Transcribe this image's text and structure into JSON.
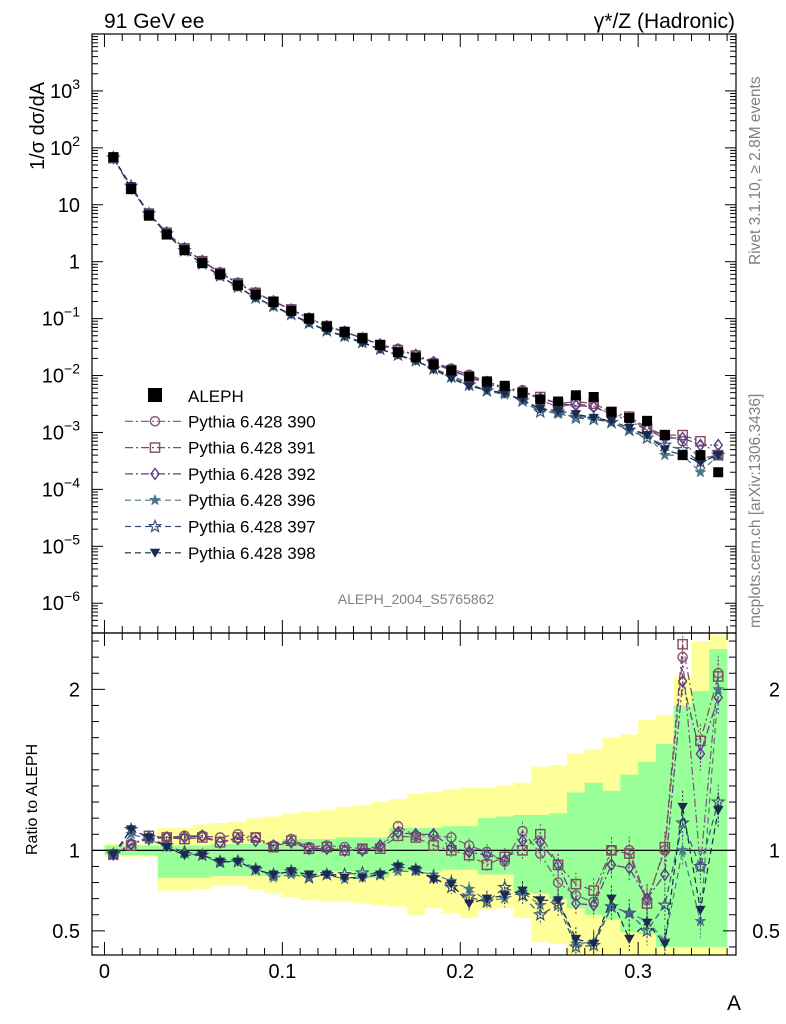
{
  "header": {
    "left": "91 GeV ee",
    "right": "γ*/Z (Hadronic)"
  },
  "side": {
    "top": "Rivet 3.1.10, ≥ 2.8M events",
    "bottom": "mcplots.cern.ch [arXiv:1306.3436]"
  },
  "watermark": "ALEPH_2004_S5765862",
  "colors": {
    "data": "#000000",
    "band_stat": "#99ff99",
    "band_syst": "#ffff99",
    "s390": "#80557f",
    "s391": "#7f4d5b",
    "s392": "#5b3d86",
    "s396": "#4b7889",
    "s397": "#3a5578",
    "s398": "#1b2a4e"
  },
  "chart_data": [
    {
      "type": "scatter",
      "panel": "main",
      "ylabel": "1/σ  dσ/dA",
      "xlabel": "",
      "xlim": [
        -0.007,
        0.355
      ],
      "ylim": [
        3e-07,
        10000
      ],
      "log_y": true,
      "y_ticks": [
        {
          "v": 1e-06,
          "base": "10",
          "exp": "−6"
        },
        {
          "v": 1e-05,
          "base": "10",
          "exp": "−5"
        },
        {
          "v": 0.0001,
          "base": "10",
          "exp": "−4"
        },
        {
          "v": 0.001,
          "base": "10",
          "exp": "−3"
        },
        {
          "v": 0.01,
          "base": "10",
          "exp": "−2"
        },
        {
          "v": 0.1,
          "base": "10",
          "exp": "−1"
        },
        {
          "v": 1,
          "base": "1",
          "exp": ""
        },
        {
          "v": 10,
          "base": "10",
          "exp": ""
        },
        {
          "v": 100,
          "base": "10",
          "exp": "2"
        },
        {
          "v": 1000,
          "base": "10",
          "exp": "3"
        }
      ],
      "legend_position": "middle-left",
      "x": [
        0.005,
        0.015,
        0.025,
        0.035,
        0.045,
        0.055,
        0.065,
        0.075,
        0.085,
        0.095,
        0.105,
        0.115,
        0.125,
        0.135,
        0.145,
        0.155,
        0.165,
        0.175,
        0.185,
        0.195,
        0.205,
        0.215,
        0.225,
        0.235,
        0.245,
        0.255,
        0.265,
        0.275,
        0.285,
        0.295,
        0.305,
        0.315,
        0.325,
        0.335,
        0.345
      ],
      "data": {
        "name": "ALEPH",
        "values": [
          68.7,
          18.8,
          6.43,
          3.0,
          1.59,
          0.946,
          0.602,
          0.385,
          0.264,
          0.196,
          0.137,
          0.1,
          0.0726,
          0.0585,
          0.045,
          0.0343,
          0.0257,
          0.0208,
          0.0157,
          0.0123,
          0.00961,
          0.0079,
          0.0066,
          0.005,
          0.0038,
          0.0035,
          0.0045,
          0.0042,
          0.0023,
          0.0018,
          0.0016,
          0.0009,
          0.0004,
          0.0004,
          0.0002
        ]
      },
      "series": [
        {
          "name": "Pythia 6.428 390",
          "color_key": "s390",
          "marker": "circle-open",
          "dash": "8 3 2 3",
          "values": [
            66.9,
            19.5,
            6.97,
            3.24,
            1.73,
            1.03,
            0.648,
            0.425,
            0.285,
            0.201,
            0.146,
            0.102,
            0.0744,
            0.0595,
            0.0454,
            0.0348,
            0.0295,
            0.0227,
            0.0171,
            0.0133,
            0.0103,
            0.0078,
            0.0061,
            0.0055,
            0.0037,
            0.0028,
            0.0032,
            0.0029,
            0.0021,
            0.0018,
            0.0011,
            0.0009,
            0.0007,
            0.00035,
            0.0004
          ]
        },
        {
          "name": "Pythia 6.428 391",
          "color_key": "s391",
          "marker": "square-open",
          "dash": "8 3 2 3",
          "values": [
            66.3,
            19.4,
            7.0,
            3.23,
            1.71,
            1.02,
            0.63,
            0.414,
            0.284,
            0.2,
            0.145,
            0.101,
            0.0738,
            0.058,
            0.0455,
            0.0345,
            0.0279,
            0.0225,
            0.0161,
            0.0123,
            0.0093,
            0.0072,
            0.0059,
            0.005,
            0.0042,
            0.0032,
            0.0035,
            0.0032,
            0.0023,
            0.0019,
            0.0012,
            0.0009,
            0.0009,
            0.0007,
            0.0004
          ]
        },
        {
          "name": "Pythia 6.428 392",
          "color_key": "s392",
          "marker": "diamond-open",
          "dash": "8 3 2 3",
          "values": [
            66.5,
            19.6,
            6.9,
            3.25,
            1.72,
            1.03,
            0.63,
            0.412,
            0.281,
            0.201,
            0.144,
            0.101,
            0.0732,
            0.0584,
            0.045,
            0.0352,
            0.0285,
            0.023,
            0.0172,
            0.0125,
            0.0095,
            0.0077,
            0.0062,
            0.0053,
            0.004,
            0.0032,
            0.003,
            0.0028,
            0.0021,
            0.0016,
            0.0011,
            0.0008,
            0.0008,
            0.0006,
            0.0006
          ]
        },
        {
          "name": "Pythia 6.428 396",
          "color_key": "s396",
          "marker": "star-filled",
          "dash": "6 4",
          "values": [
            67.2,
            20.6,
            6.9,
            3.06,
            1.56,
            0.918,
            0.556,
            0.362,
            0.235,
            0.162,
            0.117,
            0.083,
            0.0615,
            0.048,
            0.0374,
            0.029,
            0.0224,
            0.018,
            0.0133,
            0.01,
            0.0073,
            0.0054,
            0.0046,
            0.0037,
            0.0025,
            0.0021,
            0.0019,
            0.0018,
            0.0015,
            0.0011,
            0.0009,
            0.0004,
            0.0004,
            0.0002,
            0.0004
          ]
        },
        {
          "name": "Pythia 6.428 397",
          "color_key": "s397",
          "marker": "star-open",
          "dash": "6 4",
          "values": [
            66.8,
            21.2,
            6.95,
            3.1,
            1.57,
            0.92,
            0.561,
            0.36,
            0.232,
            0.167,
            0.119,
            0.0835,
            0.0614,
            0.0498,
            0.0385,
            0.0291,
            0.023,
            0.0183,
            0.0131,
            0.0095,
            0.0068,
            0.0054,
            0.0051,
            0.0036,
            0.0023,
            0.0023,
            0.0018,
            0.0017,
            0.0015,
            0.0011,
            0.0008,
            0.0006,
            0.0005,
            0.0003,
            0.0004
          ]
        },
        {
          "name": "Pythia 6.428 398",
          "color_key": "s398",
          "marker": "triangle-down-filled",
          "dash": "6 4",
          "values": [
            66.7,
            21.3,
            6.97,
            3.05,
            1.54,
            0.917,
            0.561,
            0.36,
            0.233,
            0.166,
            0.119,
            0.0855,
            0.0618,
            0.0487,
            0.0374,
            0.029,
            0.0232,
            0.0183,
            0.0128,
            0.0089,
            0.0065,
            0.0056,
            0.0048,
            0.0038,
            0.0026,
            0.0024,
            0.0021,
            0.0018,
            0.0016,
            0.0012,
            0.0009,
            0.0005,
            0.0004,
            0.0003,
            0.0004
          ]
        }
      ]
    },
    {
      "type": "scatter",
      "panel": "ratio",
      "ylabel": "Ratio to ALEPH",
      "xlabel": "A",
      "xlim": [
        -0.007,
        0.355
      ],
      "ylim": [
        0.35,
        2.35
      ],
      "x_ticks": [
        0,
        0.1,
        0.2,
        0.3
      ],
      "y_ticks": [
        0.5,
        1,
        2
      ],
      "x": [
        0.005,
        0.015,
        0.025,
        0.035,
        0.045,
        0.055,
        0.065,
        0.075,
        0.085,
        0.095,
        0.105,
        0.115,
        0.125,
        0.135,
        0.145,
        0.155,
        0.165,
        0.175,
        0.185,
        0.195,
        0.205,
        0.215,
        0.225,
        0.235,
        0.245,
        0.255,
        0.265,
        0.275,
        0.285,
        0.295,
        0.305,
        0.315,
        0.325,
        0.335,
        0.345
      ],
      "band_syst": [
        [
          0.96,
          1.04
        ],
        [
          0.96,
          1.04
        ],
        [
          0.96,
          1.04
        ],
        [
          0.75,
          1.14
        ],
        [
          0.75,
          1.14
        ],
        [
          0.76,
          1.16
        ],
        [
          0.78,
          1.17
        ],
        [
          0.78,
          1.18
        ],
        [
          0.76,
          1.2
        ],
        [
          0.73,
          1.21
        ],
        [
          0.71,
          1.23
        ],
        [
          0.69,
          1.24
        ],
        [
          0.68,
          1.25
        ],
        [
          0.68,
          1.27
        ],
        [
          0.67,
          1.28
        ],
        [
          0.66,
          1.3
        ],
        [
          0.65,
          1.32
        ],
        [
          0.6,
          1.35
        ],
        [
          0.64,
          1.36
        ],
        [
          0.61,
          1.38
        ],
        [
          0.58,
          1.39
        ],
        [
          0.63,
          1.39
        ],
        [
          0.64,
          1.4
        ],
        [
          0.58,
          1.42
        ],
        [
          0.43,
          1.52
        ],
        [
          0.42,
          1.53
        ],
        [
          0.35,
          1.6
        ],
        [
          0.35,
          1.63
        ],
        [
          0.35,
          1.7
        ],
        [
          0.35,
          1.72
        ],
        [
          0.35,
          1.81
        ],
        [
          0.35,
          1.84
        ],
        [
          0.35,
          2.08
        ],
        [
          0.35,
          2.3
        ],
        [
          0.35,
          2.34
        ]
      ],
      "band_stat": [
        [
          0.97,
          1.03
        ],
        [
          0.97,
          1.03
        ],
        [
          0.97,
          1.03
        ],
        [
          0.83,
          1.03
        ],
        [
          0.83,
          1.03
        ],
        [
          0.83,
          1.03
        ],
        [
          0.84,
          1.04
        ],
        [
          0.84,
          1.04
        ],
        [
          0.84,
          1.04
        ],
        [
          0.84,
          1.04
        ],
        [
          0.84,
          1.07
        ],
        [
          0.84,
          1.07
        ],
        [
          0.87,
          1.07
        ],
        [
          0.87,
          1.08
        ],
        [
          0.83,
          1.08
        ],
        [
          0.83,
          1.08
        ],
        [
          0.87,
          1.14
        ],
        [
          0.87,
          1.14
        ],
        [
          0.87,
          1.14
        ],
        [
          0.88,
          1.15
        ],
        [
          0.88,
          1.15
        ],
        [
          0.85,
          1.2
        ],
        [
          0.85,
          1.21
        ],
        [
          0.74,
          1.22
        ],
        [
          0.73,
          1.22
        ],
        [
          0.7,
          1.23
        ],
        [
          0.64,
          1.36
        ],
        [
          0.6,
          1.42
        ],
        [
          0.57,
          1.37
        ],
        [
          0.49,
          1.47
        ],
        [
          0.48,
          1.55
        ],
        [
          0.4,
          1.66
        ],
        [
          0.4,
          1.9
        ],
        [
          0.4,
          1.99
        ],
        [
          0.4,
          2.25
        ]
      ],
      "reference": 1,
      "series": [
        {
          "name": "Pythia 6.428 390",
          "color_key": "s390",
          "marker": "circle-open",
          "dash": "8 3 2 3",
          "values": [
            0.975,
            1.04,
            1.08,
            1.08,
            1.09,
            1.09,
            1.08,
            1.1,
            1.08,
            1.03,
            1.07,
            1.02,
            1.03,
            1.02,
            1.01,
            1.02,
            1.15,
            1.09,
            1.09,
            1.08,
            1.03,
            0.99,
            0.93,
            1.12,
            0.98,
            0.8,
            0.72,
            0.68,
            1.0,
            1.0,
            0.69,
            1.0,
            2.2,
            0.9,
            2.1
          ]
        },
        {
          "name": "Pythia 6.428 391",
          "color_key": "s391",
          "marker": "square-open",
          "dash": "8 3 2 3",
          "values": [
            0.975,
            1.03,
            1.09,
            1.08,
            1.07,
            1.08,
            1.05,
            1.08,
            1.08,
            1.02,
            1.06,
            1.01,
            1.02,
            1.0,
            1.01,
            1.01,
            1.09,
            1.08,
            1.03,
            1.0,
            0.97,
            0.91,
            0.96,
            1.0,
            1.1,
            0.91,
            0.79,
            0.75,
            1.0,
            0.98,
            0.67,
            1.02,
            2.28,
            1.68,
            2.08
          ]
        },
        {
          "name": "Pythia 6.428 392",
          "color_key": "s392",
          "marker": "diamond-open",
          "dash": "8 3 2 3",
          "values": [
            0.975,
            1.04,
            1.07,
            1.08,
            1.08,
            1.09,
            1.05,
            1.07,
            1.06,
            1.03,
            1.05,
            1.01,
            1.01,
            1.0,
            1.0,
            1.03,
            1.11,
            1.1,
            1.1,
            1.02,
            0.99,
            0.97,
            0.94,
            1.06,
            1.05,
            0.91,
            0.67,
            0.66,
            0.91,
            0.89,
            0.7,
            0.85,
            2.05,
            1.6,
            1.95
          ]
        },
        {
          "name": "Pythia 6.428 396",
          "color_key": "s396",
          "marker": "star-filled",
          "dash": "6 4",
          "values": [
            0.975,
            1.1,
            1.07,
            1.02,
            0.98,
            0.97,
            0.92,
            0.94,
            0.89,
            0.83,
            0.85,
            0.83,
            0.85,
            0.82,
            0.83,
            0.85,
            0.87,
            0.87,
            0.85,
            0.81,
            0.76,
            0.69,
            0.7,
            0.74,
            0.66,
            0.69,
            0.42,
            0.43,
            0.65,
            0.61,
            0.56,
            0.44,
            1.0,
            0.56,
            2.0
          ]
        },
        {
          "name": "Pythia 6.428 397",
          "color_key": "s397",
          "marker": "star-open",
          "dash": "6 4",
          "values": [
            0.975,
            1.13,
            1.08,
            1.03,
            0.99,
            0.97,
            0.93,
            0.93,
            0.88,
            0.85,
            0.87,
            0.83,
            0.85,
            0.85,
            0.86,
            0.85,
            0.9,
            0.88,
            0.83,
            0.77,
            0.71,
            0.68,
            0.77,
            0.72,
            0.6,
            0.66,
            0.4,
            0.41,
            0.65,
            0.61,
            0.5,
            0.66,
            1.17,
            0.9,
            1.3
          ]
        },
        {
          "name": "Pythia 6.428 398",
          "color_key": "s398",
          "marker": "triangle-down-filled",
          "dash": "6 4",
          "values": [
            0.975,
            1.13,
            1.08,
            1.02,
            0.97,
            0.97,
            0.93,
            0.93,
            0.88,
            0.85,
            0.87,
            0.85,
            0.85,
            0.83,
            0.83,
            0.85,
            0.9,
            0.88,
            0.82,
            0.79,
            0.67,
            0.7,
            0.72,
            0.75,
            0.69,
            0.69,
            0.45,
            0.42,
            0.7,
            0.45,
            0.55,
            0.42,
            1.27,
            0.63,
            1.25
          ]
        }
      ]
    }
  ]
}
